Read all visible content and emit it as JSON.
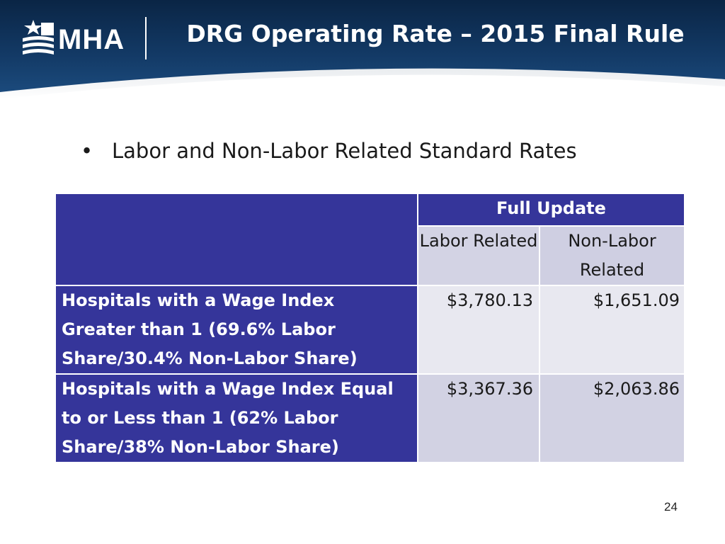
{
  "header": {
    "logo_text": "MHA",
    "title": "DRG Operating Rate – 2015 Final Rule"
  },
  "bullet": {
    "text": "Labor and Non-Labor Related Standard Rates"
  },
  "table": {
    "group_header": "Full Update",
    "col_labor": "Labor Related",
    "col_nonlabor": "Non-Labor Related",
    "rows": [
      {
        "label": "Hospitals with a Wage Index Greater than 1 (69.6% Labor Share/30.4% Non-Labor Share)",
        "labor": "$3,780.13",
        "nonlabor": "$1,651.09"
      },
      {
        "label": "Hospitals with a Wage Index Equal to or Less than 1 (62% Labor Share/38% Non-Labor Share)",
        "labor": "$3,367.36",
        "nonlabor": "$2,063.86"
      }
    ]
  },
  "page_number": "24",
  "colors": {
    "header_dark": "#0f2d52",
    "table_blue": "#35359a"
  }
}
